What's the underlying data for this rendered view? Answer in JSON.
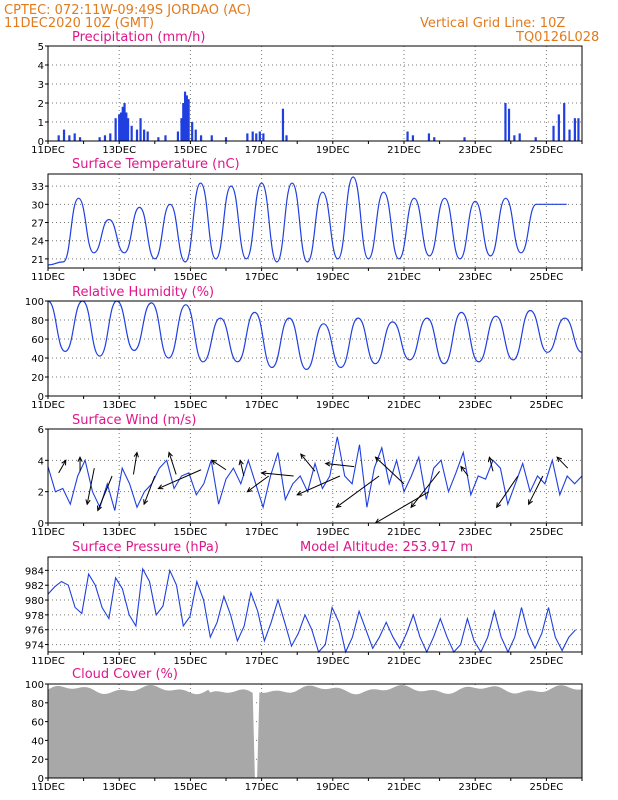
{
  "header": {
    "left_line1": "CPTEC:  072:11W-09:49S  JORDAO (AC)",
    "left_line2": "11DEC2020 10Z (GMT)",
    "right_line1": "Vertical Grid Line: 10Z",
    "right_line2": "TQ0126L028"
  },
  "colors": {
    "header": "#e07b1e",
    "panel_title": "#e0168a",
    "series": "#1f3fe0",
    "cloud": "#a8a8a8",
    "wind_arrow": "#000000"
  },
  "date_labels": [
    "11DEC",
    "13DEC",
    "15DEC",
    "17DEC",
    "19DEC",
    "21DEC",
    "23DEC",
    "25DEC"
  ],
  "chart_data": [
    {
      "type": "bar",
      "title": "Precipitation (mm/h)",
      "ylim": [
        0,
        5
      ],
      "yticks": [
        "0",
        "1",
        "2",
        "3",
        "4",
        "5"
      ],
      "x_range_days": [
        0,
        15
      ],
      "values": [
        [
          0.3,
          0.3
        ],
        [
          0.45,
          0.6
        ],
        [
          0.6,
          0.3
        ],
        [
          0.75,
          0.4
        ],
        [
          0.9,
          0.2
        ],
        [
          1.45,
          0.2
        ],
        [
          1.6,
          0.3
        ],
        [
          1.75,
          0.4
        ],
        [
          1.9,
          1.2
        ],
        [
          2.0,
          1.4
        ],
        [
          2.05,
          1.5
        ],
        [
          2.1,
          1.8
        ],
        [
          2.15,
          2.0
        ],
        [
          2.2,
          1.5
        ],
        [
          2.25,
          1.2
        ],
        [
          2.35,
          0.8
        ],
        [
          2.5,
          0.6
        ],
        [
          2.6,
          1.2
        ],
        [
          2.7,
          0.6
        ],
        [
          2.8,
          0.5
        ],
        [
          3.1,
          0.2
        ],
        [
          3.3,
          0.3
        ],
        [
          3.65,
          0.5
        ],
        [
          3.75,
          1.2
        ],
        [
          3.8,
          2.0
        ],
        [
          3.85,
          2.6
        ],
        [
          3.9,
          2.4
        ],
        [
          3.95,
          2.2
        ],
        [
          4.05,
          1.0
        ],
        [
          4.15,
          0.6
        ],
        [
          4.3,
          0.3
        ],
        [
          4.6,
          0.3
        ],
        [
          5.0,
          0.2
        ],
        [
          5.6,
          0.4
        ],
        [
          5.75,
          0.5
        ],
        [
          5.85,
          0.4
        ],
        [
          5.95,
          0.5
        ],
        [
          6.05,
          0.4
        ],
        [
          6.6,
          1.7
        ],
        [
          6.7,
          0.3
        ],
        [
          10.1,
          0.5
        ],
        [
          10.25,
          0.3
        ],
        [
          10.7,
          0.4
        ],
        [
          10.85,
          0.2
        ],
        [
          11.7,
          0.2
        ],
        [
          12.85,
          2.0
        ],
        [
          12.95,
          1.7
        ],
        [
          13.1,
          0.3
        ],
        [
          13.25,
          0.4
        ],
        [
          13.7,
          0.2
        ],
        [
          14.2,
          0.8
        ],
        [
          14.35,
          1.4
        ],
        [
          14.5,
          2.0
        ],
        [
          14.65,
          0.6
        ],
        [
          14.8,
          1.2
        ],
        [
          14.9,
          1.2
        ]
      ]
    },
    {
      "type": "line",
      "title": "Surface Temperature (nC)",
      "ylim": [
        19.5,
        35
      ],
      "yticks": [
        "21",
        "24",
        "27",
        "30",
        "33"
      ],
      "x_range_days": [
        0,
        15
      ],
      "peaks": [
        20,
        31,
        27.5,
        29.5,
        30,
        33.5,
        33,
        33.5,
        33.5,
        32,
        34.5,
        32,
        31,
        31,
        30.5,
        31,
        30,
        30
      ],
      "troughs": [
        20.5,
        22,
        22,
        21,
        20.5,
        21,
        21,
        20.5,
        20.5,
        21,
        21,
        21,
        21.5,
        21,
        21.5,
        22
      ]
    },
    {
      "type": "line",
      "title": "Relative Humidity (%)",
      "ylim": [
        0,
        100
      ],
      "yticks": [
        "0",
        "20",
        "40",
        "60",
        "80",
        "100"
      ],
      "x_range_days": [
        0,
        15
      ],
      "peaks": [
        100,
        100,
        100,
        98,
        96,
        82,
        88,
        82,
        76,
        82,
        78,
        82,
        88,
        84,
        90,
        82
      ],
      "troughs": [
        47,
        42,
        48,
        40,
        36,
        36,
        30,
        28,
        30,
        34,
        38,
        34,
        36,
        38,
        46,
        46
      ]
    },
    {
      "type": "line",
      "title": "Surface Wind (m/s)",
      "ylim": [
        0,
        6
      ],
      "yticks": [
        "0",
        "2",
        "4",
        "6"
      ],
      "x_range_days": [
        0,
        15
      ],
      "values": [
        3.6,
        2.0,
        2.2,
        1.2,
        3.0,
        4.0,
        2.0,
        1.0,
        2.5,
        0.8,
        3.5,
        2.5,
        1.0,
        2.0,
        2.5,
        3.5,
        4.0,
        2.2,
        3.0,
        3.2,
        1.8,
        2.5,
        4.0,
        1.2,
        2.8,
        3.5,
        2.5,
        4.0,
        2.5,
        1.0,
        3.0,
        4.5,
        1.5,
        2.5,
        3.0,
        2.0,
        3.8,
        2.2,
        3.0,
        5.5,
        3.0,
        2.5,
        5.0,
        1.0,
        3.5,
        4.8,
        2.5,
        4.0,
        2.0,
        3.0,
        4.2,
        1.5,
        3.5,
        4.0,
        2.0,
        3.2,
        4.5,
        1.8,
        3.0,
        2.8,
        4.0,
        3.5,
        1.2,
        2.5,
        3.8,
        2.0,
        3.0,
        2.5,
        4.0,
        1.8,
        3.0,
        2.5,
        3.0
      ],
      "arrows_from": [
        [
          0.3,
          3.2
        ],
        [
          0.9,
          3.3
        ],
        [
          1.3,
          3.5
        ],
        [
          1.8,
          3.0
        ],
        [
          2.4,
          3.1
        ],
        [
          3.0,
          3.0
        ],
        [
          3.6,
          3.1
        ],
        [
          4.3,
          3.4
        ],
        [
          5.0,
          3.4
        ],
        [
          5.5,
          3.0
        ],
        [
          6.2,
          3.0
        ],
        [
          6.9,
          3.0
        ],
        [
          7.5,
          3.3
        ],
        [
          8.2,
          3.0
        ],
        [
          8.6,
          3.6
        ],
        [
          9.3,
          3.0
        ],
        [
          10.0,
          2.5
        ],
        [
          10.7,
          2.0
        ],
        [
          11.0,
          3.3
        ],
        [
          11.8,
          3.0
        ],
        [
          12.5,
          3.3
        ],
        [
          13.2,
          3.0
        ],
        [
          13.9,
          3.0
        ],
        [
          14.6,
          3.5
        ]
      ],
      "arrows_to": [
        [
          0.5,
          4.0
        ],
        [
          0.9,
          4.2
        ],
        [
          1.1,
          1.2
        ],
        [
          1.4,
          0.8
        ],
        [
          2.5,
          4.5
        ],
        [
          2.7,
          1.2
        ],
        [
          3.4,
          4.5
        ],
        [
          3.1,
          2.2
        ],
        [
          4.6,
          4.0
        ],
        [
          5.4,
          4.0
        ],
        [
          5.6,
          2.0
        ],
        [
          6.0,
          3.2
        ],
        [
          7.1,
          4.4
        ],
        [
          7.0,
          1.8
        ],
        [
          7.8,
          3.8
        ],
        [
          8.1,
          1.0
        ],
        [
          9.2,
          4.2
        ],
        [
          9.2,
          0.0
        ],
        [
          10.2,
          1.0
        ],
        [
          11.6,
          3.6
        ],
        [
          12.4,
          4.2
        ],
        [
          12.6,
          1.0
        ],
        [
          13.5,
          1.2
        ],
        [
          14.3,
          4.2
        ]
      ]
    },
    {
      "type": "line",
      "title": "Surface Pressure (hPa)",
      "annotation": "Model Altitude: 253.917  m",
      "ylim": [
        973,
        985.8
      ],
      "yticks": [
        "974",
        "976",
        "978",
        "980",
        "982",
        "984"
      ],
      "x_range_days": [
        0,
        15
      ],
      "values": [
        980.8,
        981.8,
        982.5,
        982.0,
        979.0,
        978.2,
        983.5,
        982.0,
        979.0,
        977.5,
        983.0,
        981.5,
        978.0,
        976.5,
        984.2,
        982.5,
        978.0,
        979.2,
        984.0,
        982.0,
        976.5,
        977.8,
        982.5,
        980.0,
        975.0,
        977.0,
        980.5,
        978.0,
        974.5,
        976.5,
        981.0,
        978.5,
        974.5,
        977.0,
        980.0,
        977.0,
        973.8,
        975.5,
        978.0,
        976.0,
        972.8,
        974.0,
        979.0,
        977.0,
        973.0,
        975.0,
        978.5,
        976.0,
        973.5,
        975.0,
        977.0,
        975.0,
        973.5,
        975.5,
        978.0,
        975.0,
        973.0,
        975.0,
        977.5,
        975.0,
        973.0,
        974.0,
        977.5,
        974.5,
        972.5,
        975.0,
        978.5,
        975.0,
        973.0,
        975.0,
        979.0,
        975.5,
        973.5,
        975.5,
        979.0,
        975.0,
        973.2,
        975.0,
        976.0
      ],
      "x_step_days": 0.19
    },
    {
      "type": "area",
      "title": "Cloud Cover (%)",
      "ylim": [
        0,
        100
      ],
      "yticks": [
        "0",
        "20",
        "40",
        "60",
        "80",
        "100"
      ],
      "x_range_days": [
        0,
        15
      ],
      "typical_value": 94,
      "gap_day": 5.85
    }
  ]
}
